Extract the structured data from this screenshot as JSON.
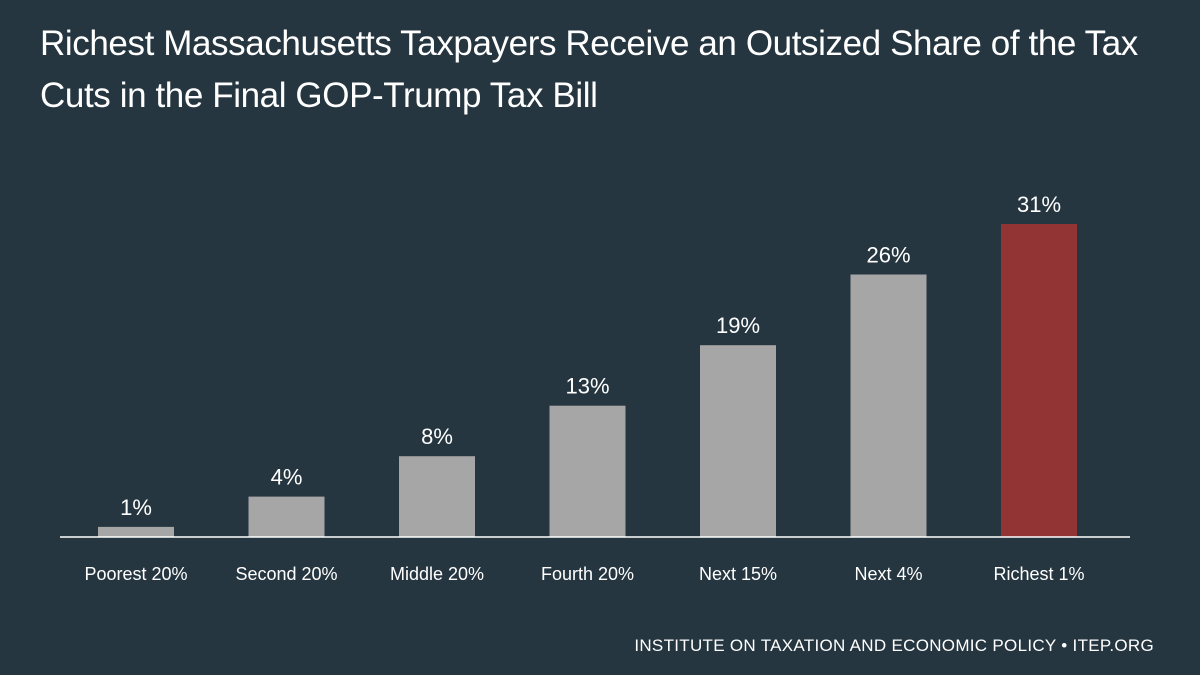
{
  "title": "Richest Massachusetts Taxpayers Receive an Outsized Share of the Tax Cuts in the Final GOP-Trump Tax Bill",
  "footer": "INSTITUTE ON TAXATION AND ECONOMIC POLICY • ITEP.ORG",
  "colors": {
    "background": "#253640",
    "bar": "#A6A6A6",
    "highlight": "#923434",
    "axis": "#FFFFFF"
  },
  "chart_data": {
    "type": "bar",
    "title": "Richest Massachusetts Taxpayers Receive an Outsized Share of the Tax Cuts in the Final GOP-Trump Tax Bill",
    "xlabel": "",
    "ylabel": "",
    "ylim": [
      0,
      31
    ],
    "grid": false,
    "legend": "none",
    "categories": [
      "Poorest 20%",
      "Second 20%",
      "Middle 20%",
      "Fourth 20%",
      "Next 15%",
      "Next 4%",
      "Richest 1%"
    ],
    "values": [
      1,
      4,
      8,
      13,
      19,
      26,
      31
    ],
    "data_labels": [
      "1%",
      "4%",
      "8%",
      "13%",
      "19%",
      "26%",
      "31%"
    ],
    "highlight_category": "Richest 1%"
  }
}
